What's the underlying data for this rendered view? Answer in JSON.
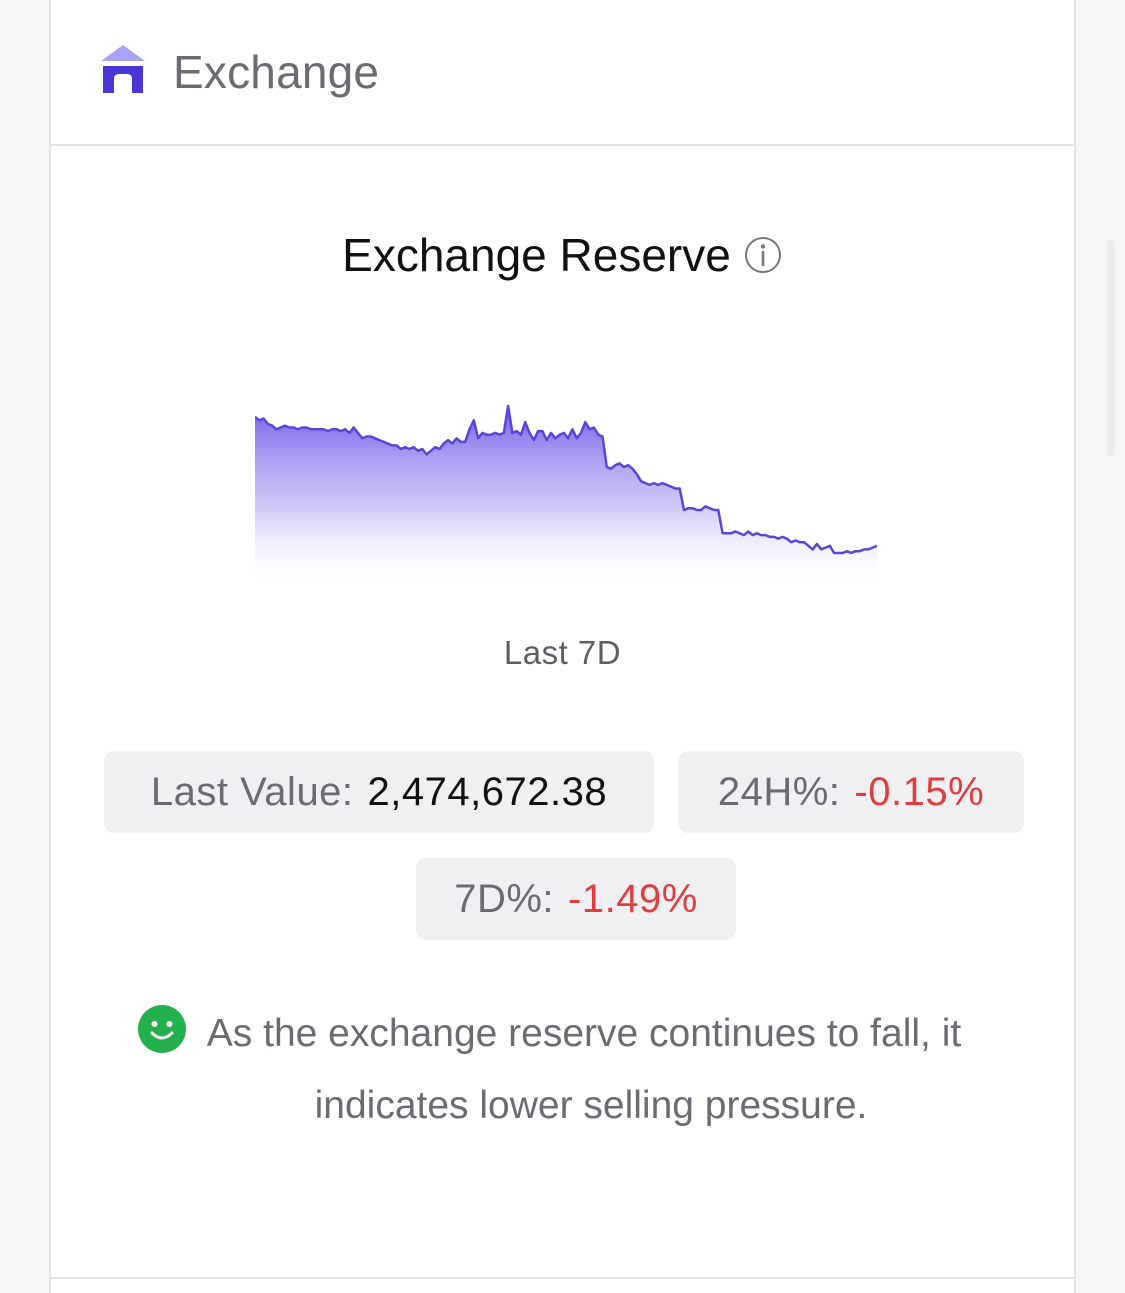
{
  "header": {
    "title": "Exchange",
    "icon": "house-icon"
  },
  "widget": {
    "title": "Exchange Reserve",
    "info_icon": "info-icon",
    "period_label": "Last 7D",
    "accent_color": "#5a45d8"
  },
  "stats": {
    "last_value_label": "Last Value:",
    "last_value": "2,474,672.38",
    "change_24h_label": "24H%:",
    "change_24h": "-0.15%",
    "change_7d_label": "7D%:",
    "change_7d": "-1.49%",
    "negative_color": "#e03d3d"
  },
  "note": {
    "icon": "smile-icon",
    "text": "As the exchange reserve continues to fall, it indicates lower selling pressure."
  },
  "chart_data": {
    "type": "area",
    "title": "",
    "xlabel": "",
    "ylabel": "",
    "grid": false,
    "legend": "none",
    "series": [
      {
        "values": [
          120,
          118,
          119,
          116,
          115,
          113,
          114,
          115,
          114,
          114,
          113,
          114,
          114,
          113,
          113,
          113,
          113,
          112,
          113,
          113,
          112,
          113,
          111,
          114,
          111,
          108,
          109,
          109,
          108,
          107,
          106,
          105,
          104,
          104,
          102,
          103,
          102,
          103,
          101,
          102,
          99,
          101,
          103,
          102,
          105,
          107,
          105,
          108,
          106,
          106,
          113,
          118,
          108,
          111,
          110,
          110,
          111,
          110,
          111,
          126,
          111,
          112,
          110,
          117,
          111,
          107,
          112,
          112,
          107,
          111,
          108,
          110,
          111,
          108,
          113,
          108,
          111,
          117,
          113,
          114,
          110,
          109,
          92,
          91,
          93,
          94,
          92,
          93,
          91,
          88,
          84,
          83,
          82,
          83,
          82,
          83,
          82,
          81,
          80,
          80,
          68,
          69,
          69,
          68,
          68,
          70,
          69,
          68,
          68,
          55,
          55,
          55,
          56,
          55,
          54,
          56,
          54,
          55,
          54,
          54,
          53,
          53,
          52,
          53,
          52,
          50,
          51,
          50,
          50,
          48,
          46,
          49,
          46,
          47,
          48,
          44,
          44,
          44,
          45,
          44,
          45,
          45,
          46,
          46,
          47,
          48
        ]
      }
    ]
  }
}
